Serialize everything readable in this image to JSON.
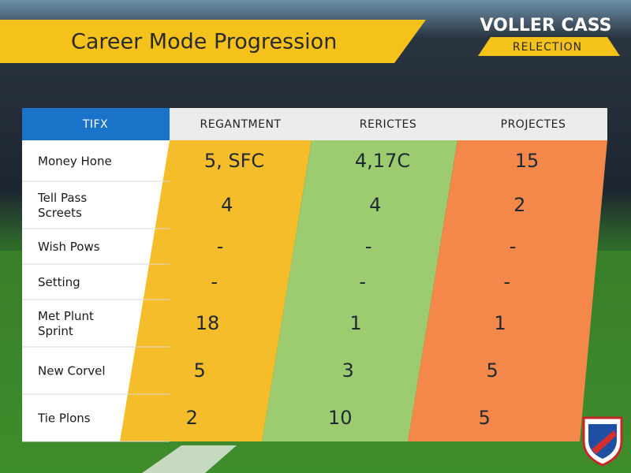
{
  "header": {
    "title": "Career Mode Progression",
    "logo": "VOLLER CASS",
    "logo_sub": "RELECTION"
  },
  "table": {
    "columns": [
      "TIFX",
      "REGANTMENT",
      "RERICTES",
      "PROJECTES"
    ],
    "rows": [
      {
        "label": [
          "Money Hone"
        ],
        "cells": [
          "5, SFC",
          "4,17C",
          "15"
        ]
      },
      {
        "label": [
          "Tell Pass",
          "Screets"
        ],
        "cells": [
          "4",
          "4",
          "2"
        ]
      },
      {
        "label": [
          "Wish Pows"
        ],
        "cells": [
          "-",
          "-",
          "-"
        ]
      },
      {
        "label": [
          "Setting"
        ],
        "cells": [
          "-",
          "-",
          "-"
        ]
      },
      {
        "label": [
          "Met Plunt",
          "Sprint"
        ],
        "cells": [
          "18",
          "1",
          "1"
        ]
      },
      {
        "label": [
          "New Corvel"
        ],
        "cells": [
          "5",
          "3",
          "5"
        ]
      },
      {
        "label": [
          "Tie Plons"
        ],
        "cells": [
          "2",
          "10",
          "5"
        ]
      }
    ]
  }
}
